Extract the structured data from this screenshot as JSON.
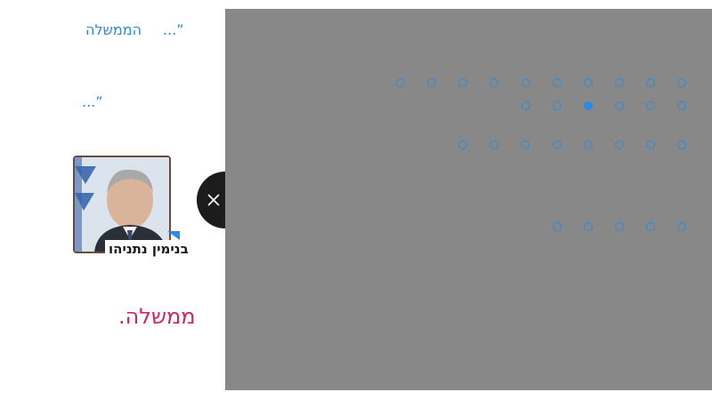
{
  "article": {
    "quote_1_mark": "”...",
    "quote_1_text": "הממשלה",
    "quote_2_mark": "”...",
    "person_name": "בנימין נתניהו",
    "headline_word": "ממשלה."
  },
  "colors": {
    "accent_blue": "#2a8be0",
    "headline_red": "#d6245a",
    "overlay_gray": "#888888",
    "close_bg": "#1c1c1c"
  },
  "overlay": {
    "close_icon": "close-icon",
    "dot_rows": [
      {
        "count": 10,
        "active_index": -1
      },
      {
        "count": 6,
        "active_index": 2
      },
      {
        "count": 8,
        "active_index": -1
      },
      {
        "count": 5,
        "active_index": -1
      }
    ]
  }
}
